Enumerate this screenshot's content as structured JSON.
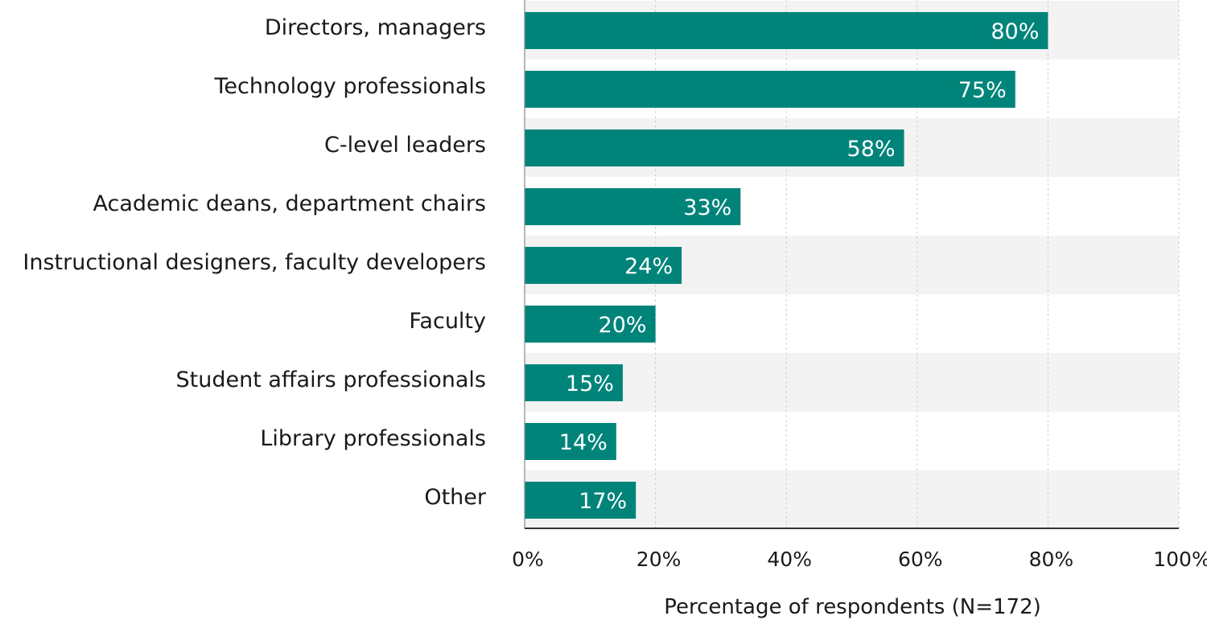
{
  "chart_data": {
    "type": "bar",
    "orientation": "horizontal",
    "categories": [
      "Directors, managers",
      "Technology professionals",
      "C-level leaders",
      "Academic deans, department chairs",
      "Instructional designers, faculty developers",
      "Faculty",
      "Student affairs professionals",
      "Library professionals",
      "Other"
    ],
    "values": [
      80,
      75,
      58,
      33,
      24,
      20,
      15,
      14,
      17
    ],
    "value_labels": [
      "80%",
      "75%",
      "58%",
      "33%",
      "24%",
      "20%",
      "15%",
      "14%",
      "17%"
    ],
    "xlim": [
      0,
      100
    ],
    "x_ticks": [
      0,
      20,
      40,
      60,
      80,
      100
    ],
    "x_tick_labels": [
      "0%",
      "20%",
      "40%",
      "60%",
      "80%",
      "100%"
    ],
    "xlabel": "Percentage of respondents (N=172)",
    "ylabel": "",
    "title": "",
    "grid": "vertical-dashed",
    "bar_color": "#00847a",
    "band_color": "#f3f3f3"
  }
}
